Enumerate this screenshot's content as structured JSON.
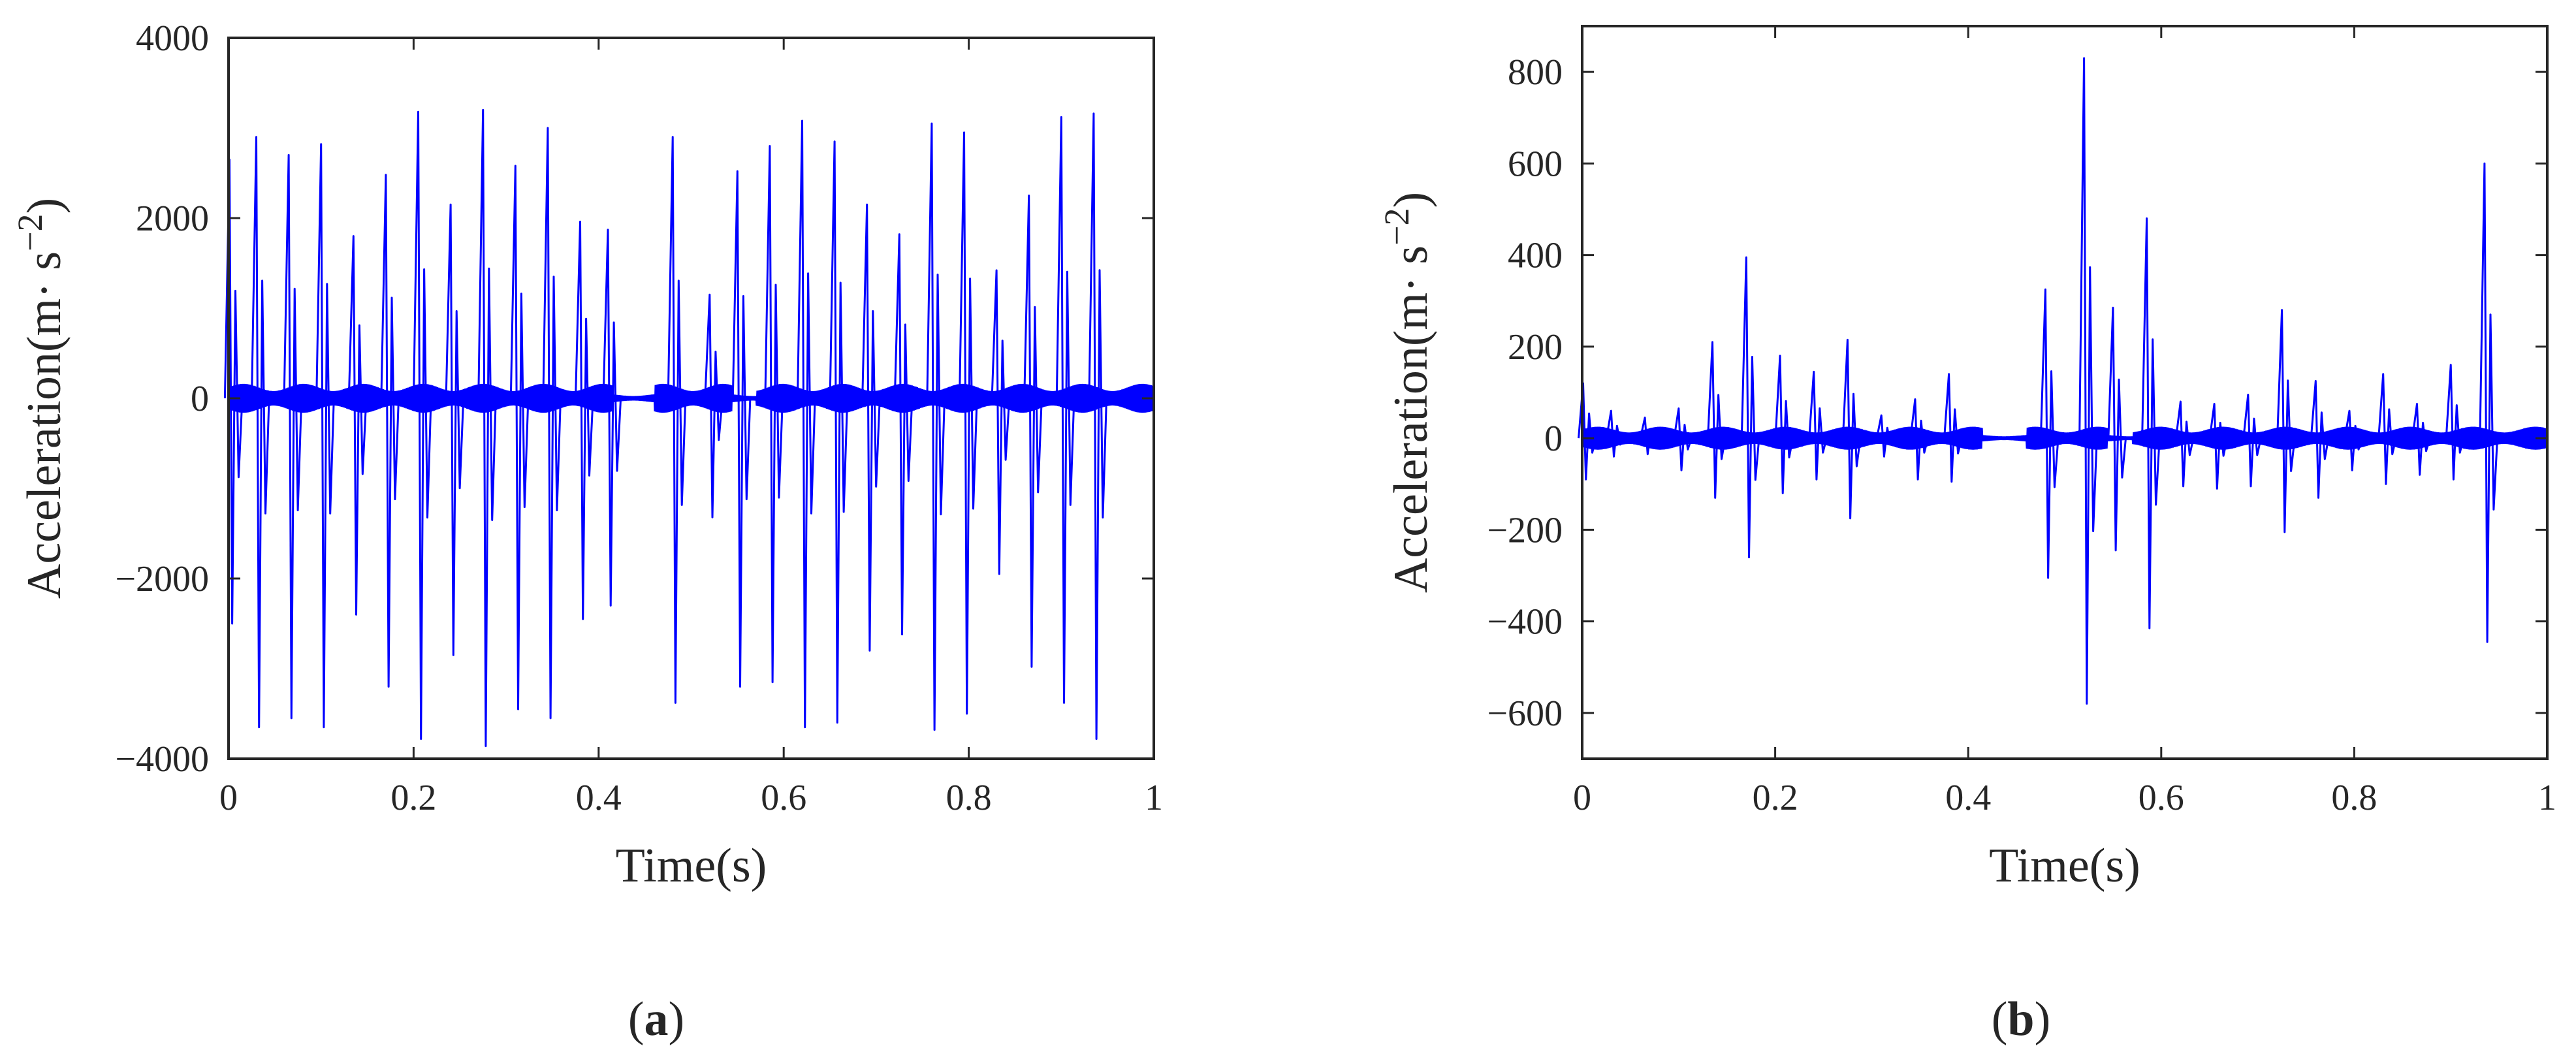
{
  "chart_data": [
    {
      "type": "line",
      "panel_label": {
        "open": "(",
        "letter": "a",
        "close": ")"
      },
      "xlabel": "Time(s)",
      "ylabel": {
        "text": "Acceleration(m· s",
        "sup": "−2",
        "close": ")"
      },
      "xlim": [
        0,
        1
      ],
      "ylim": [
        -4000,
        4000
      ],
      "xticks": [
        0,
        0.2,
        0.4,
        0.6,
        0.8,
        1
      ],
      "xtick_labels": [
        "0",
        "0.2",
        "0.4",
        "0.6",
        "0.8",
        "1"
      ],
      "yticks": [
        -4000,
        -2000,
        0,
        2000,
        4000
      ],
      "ytick_labels": [
        "−4000",
        "−2000",
        "0",
        "2000",
        "4000"
      ],
      "grid": false,
      "line_color": "#0000ff",
      "baseline_amplitude": 160,
      "quiet_intervals": [
        [
          0.415,
          0.46
        ],
        [
          0.545,
          0.57
        ]
      ],
      "impulses": [
        {
          "t": 0.001,
          "pos": 2650,
          "neg": -2500
        },
        {
          "t": 0.03,
          "pos": 2900,
          "neg": -3650
        },
        {
          "t": 0.065,
          "pos": 2700,
          "neg": -3550
        },
        {
          "t": 0.1,
          "pos": 2820,
          "neg": -3650
        },
        {
          "t": 0.135,
          "pos": 1800,
          "neg": -2400
        },
        {
          "t": 0.17,
          "pos": 2480,
          "neg": -3200
        },
        {
          "t": 0.205,
          "pos": 3180,
          "neg": -3780
        },
        {
          "t": 0.24,
          "pos": 2150,
          "neg": -2850
        },
        {
          "t": 0.275,
          "pos": 3200,
          "neg": -3860
        },
        {
          "t": 0.31,
          "pos": 2580,
          "neg": -3450
        },
        {
          "t": 0.345,
          "pos": 3000,
          "neg": -3550
        },
        {
          "t": 0.38,
          "pos": 1960,
          "neg": -2450
        },
        {
          "t": 0.41,
          "pos": 1870,
          "neg": -2300
        },
        {
          "t": 0.48,
          "pos": 2900,
          "neg": -3380
        },
        {
          "t": 0.52,
          "pos": 1150,
          "neg": -1320
        },
        {
          "t": 0.55,
          "pos": 2520,
          "neg": -3200
        },
        {
          "t": 0.585,
          "pos": 2800,
          "neg": -3150
        },
        {
          "t": 0.62,
          "pos": 3080,
          "neg": -3650
        },
        {
          "t": 0.655,
          "pos": 2850,
          "neg": -3600
        },
        {
          "t": 0.69,
          "pos": 2150,
          "neg": -2800
        },
        {
          "t": 0.725,
          "pos": 1820,
          "neg": -2620
        },
        {
          "t": 0.76,
          "pos": 3050,
          "neg": -3680
        },
        {
          "t": 0.795,
          "pos": 2950,
          "neg": -3500
        },
        {
          "t": 0.83,
          "pos": 1420,
          "neg": -1950
        },
        {
          "t": 0.865,
          "pos": 2250,
          "neg": -2980
        },
        {
          "t": 0.9,
          "pos": 3120,
          "neg": -3380
        },
        {
          "t": 0.935,
          "pos": 3160,
          "neg": -3780
        }
      ]
    },
    {
      "type": "line",
      "panel_label": {
        "open": "(",
        "letter": "b",
        "close": ")"
      },
      "xlabel": "Time(s)",
      "ylabel": {
        "text": "Acceleration(m· s",
        "sup": "−2",
        "close": ")"
      },
      "xlim": [
        0,
        1
      ],
      "ylim": [
        -700,
        900
      ],
      "xticks": [
        0,
        0.2,
        0.4,
        0.6,
        0.8,
        1
      ],
      "xtick_labels": [
        "0",
        "0.2",
        "0.4",
        "0.6",
        "0.8",
        "1"
      ],
      "yticks": [
        -600,
        -400,
        -200,
        0,
        200,
        400,
        600,
        800
      ],
      "ytick_labels": [
        "−600",
        "−400",
        "−200",
        "0",
        "200",
        "400",
        "600",
        "800"
      ],
      "grid": false,
      "line_color": "#0000ff",
      "baseline_amplitude": 25,
      "quiet_intervals": [
        [
          0.415,
          0.46
        ],
        [
          0.545,
          0.57
        ]
      ],
      "impulses": [
        {
          "t": 0.001,
          "pos": 120,
          "neg": -90
        },
        {
          "t": 0.03,
          "pos": 60,
          "neg": -40
        },
        {
          "t": 0.065,
          "pos": 45,
          "neg": -35
        },
        {
          "t": 0.1,
          "pos": 65,
          "neg": -70
        },
        {
          "t": 0.135,
          "pos": 210,
          "neg": -130
        },
        {
          "t": 0.17,
          "pos": 395,
          "neg": -260
        },
        {
          "t": 0.205,
          "pos": 180,
          "neg": -120
        },
        {
          "t": 0.24,
          "pos": 145,
          "neg": -90
        },
        {
          "t": 0.275,
          "pos": 215,
          "neg": -175
        },
        {
          "t": 0.31,
          "pos": 50,
          "neg": -40
        },
        {
          "t": 0.345,
          "pos": 85,
          "neg": -90
        },
        {
          "t": 0.38,
          "pos": 140,
          "neg": -95
        },
        {
          "t": 0.48,
          "pos": 325,
          "neg": -305
        },
        {
          "t": 0.52,
          "pos": 830,
          "neg": -580
        },
        {
          "t": 0.55,
          "pos": 285,
          "neg": -245
        },
        {
          "t": 0.585,
          "pos": 480,
          "neg": -415
        },
        {
          "t": 0.62,
          "pos": 80,
          "neg": -105
        },
        {
          "t": 0.655,
          "pos": 75,
          "neg": -110
        },
        {
          "t": 0.69,
          "pos": 95,
          "neg": -105
        },
        {
          "t": 0.725,
          "pos": 280,
          "neg": -205
        },
        {
          "t": 0.76,
          "pos": 125,
          "neg": -130
        },
        {
          "t": 0.795,
          "pos": 60,
          "neg": -70
        },
        {
          "t": 0.83,
          "pos": 140,
          "neg": -100
        },
        {
          "t": 0.865,
          "pos": 75,
          "neg": -80
        },
        {
          "t": 0.9,
          "pos": 160,
          "neg": -90
        },
        {
          "t": 0.935,
          "pos": 600,
          "neg": -445
        }
      ]
    }
  ]
}
